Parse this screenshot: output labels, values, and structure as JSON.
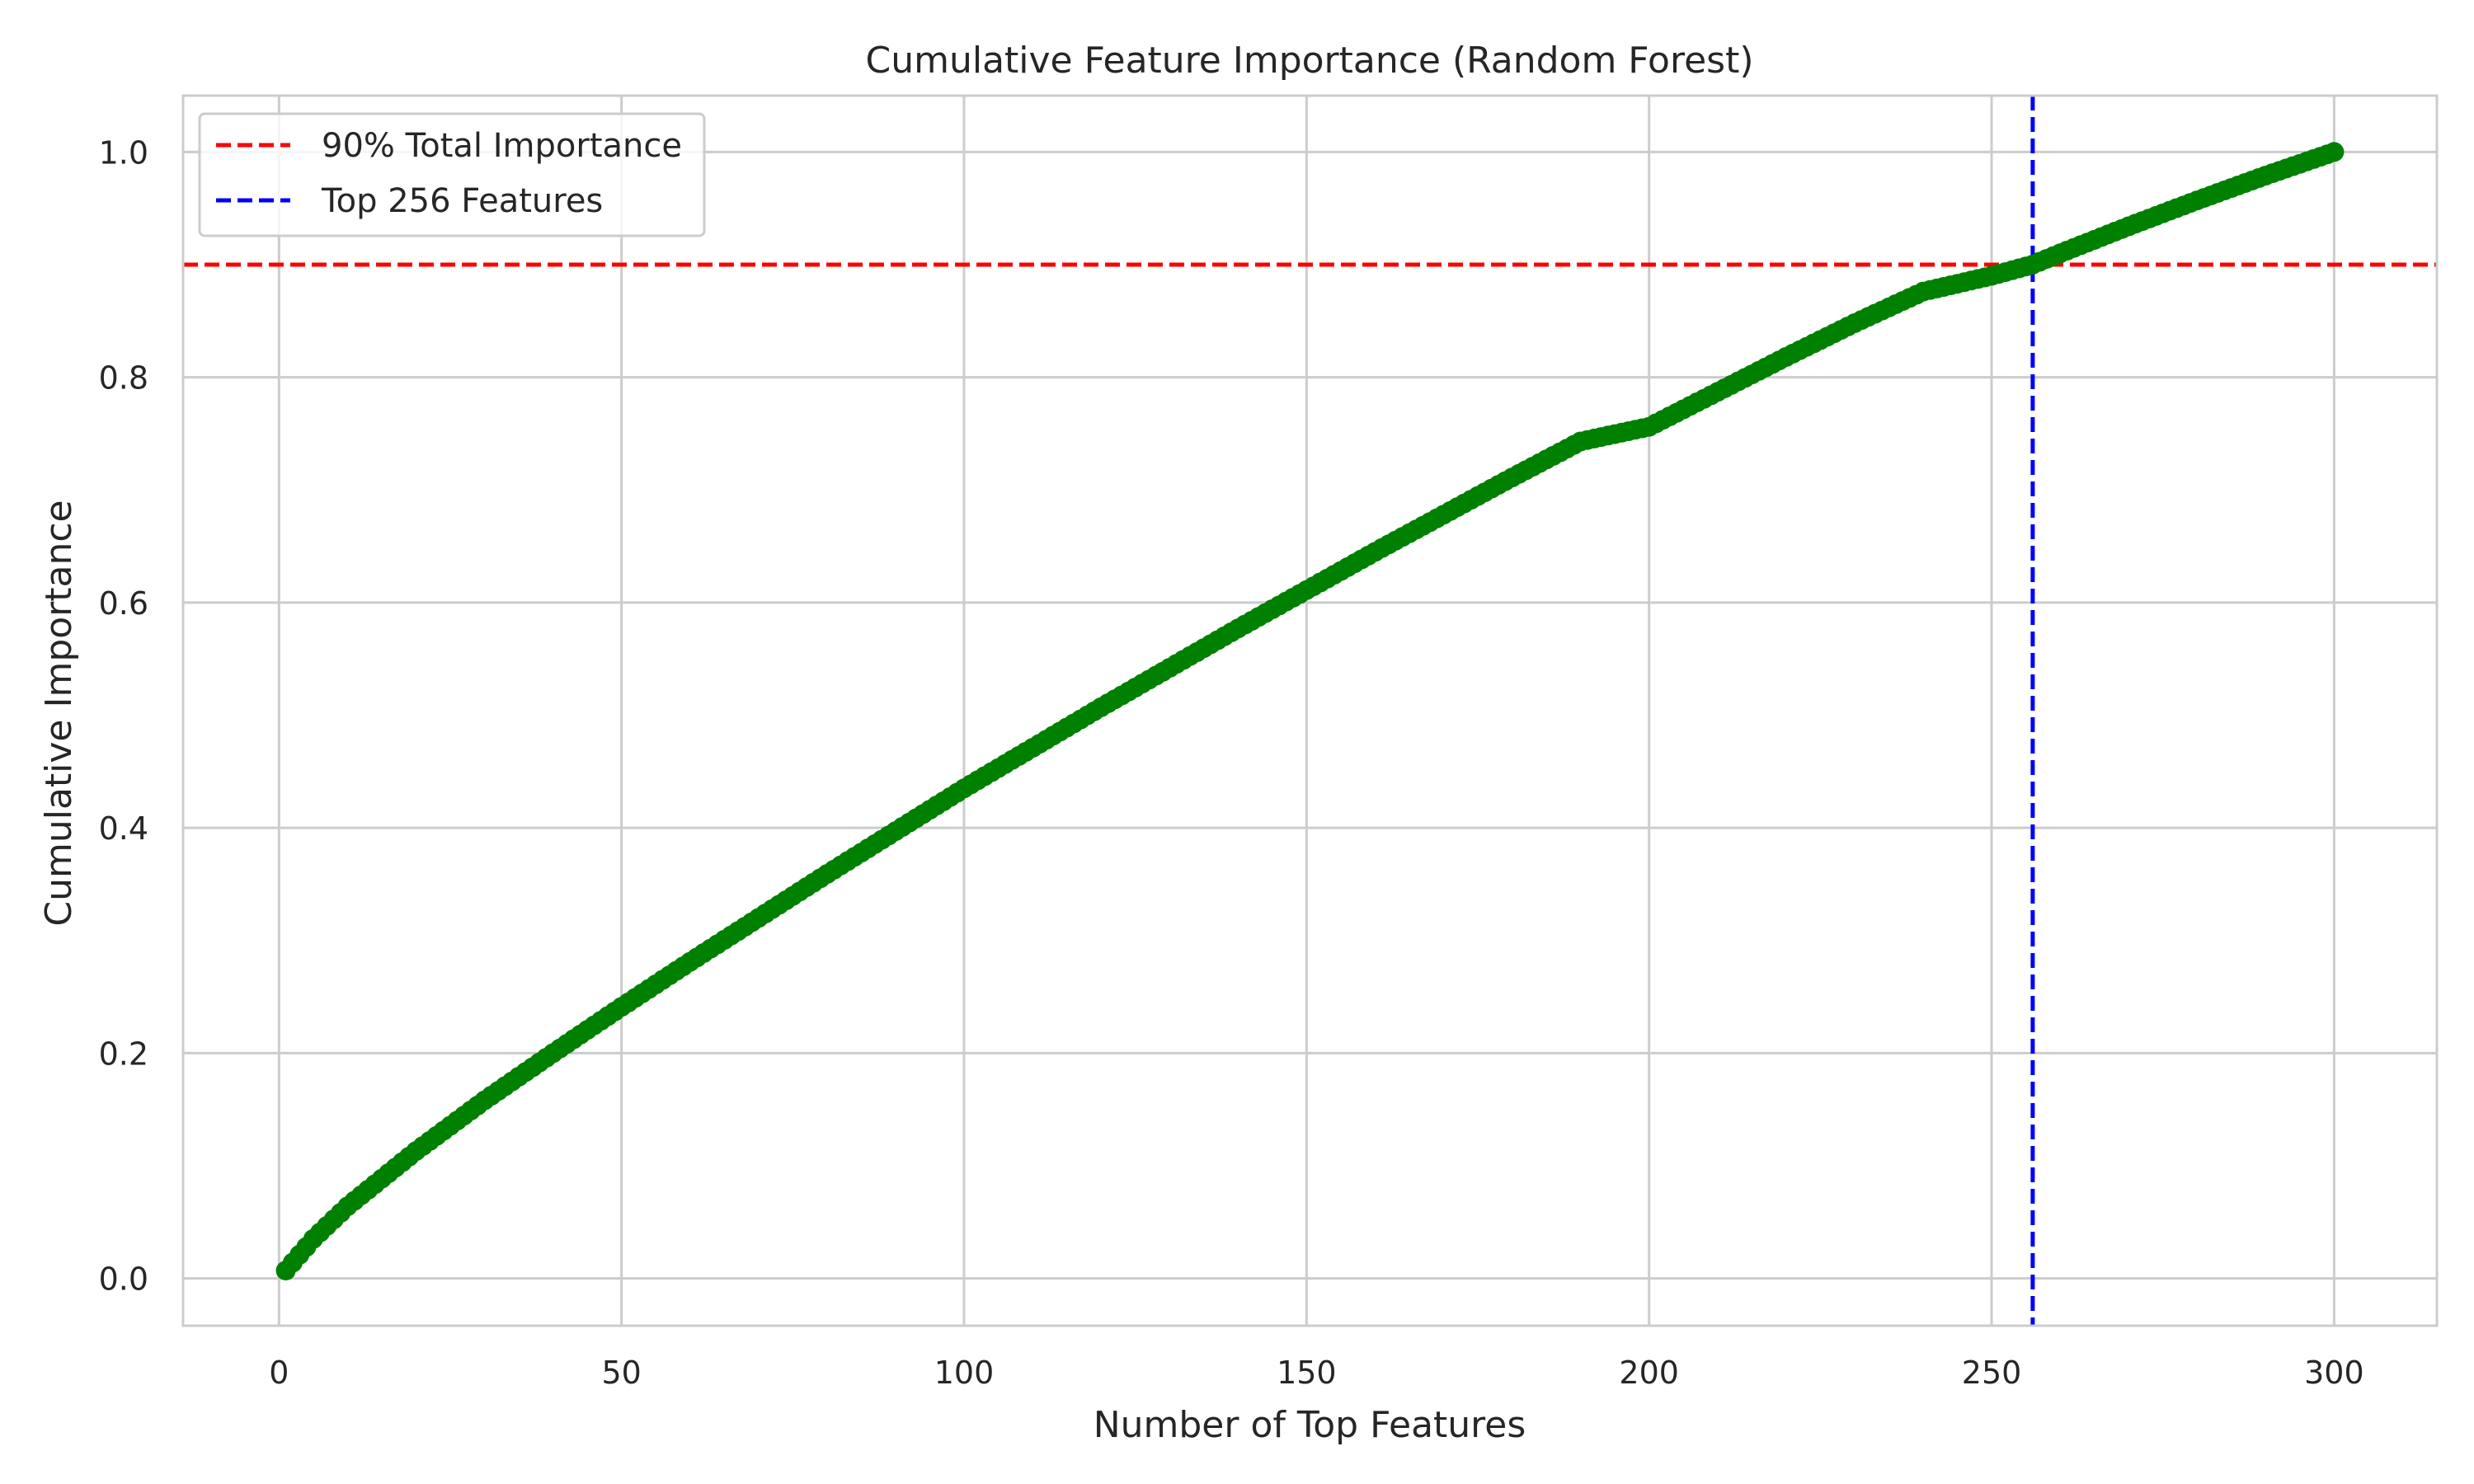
{
  "chart_data": {
    "type": "line",
    "title": "Cumulative Feature Importance (Random Forest)",
    "xlabel": "Number of Top Features",
    "ylabel": "Cumulative Importance",
    "xlim": [
      -14,
      315
    ],
    "ylim": [
      -0.042,
      1.05
    ],
    "xticks": [
      0,
      50,
      100,
      150,
      200,
      250,
      300
    ],
    "xtick_labels": [
      "0",
      "50",
      "100",
      "150",
      "200",
      "250",
      "300"
    ],
    "yticks": [
      0.0,
      0.2,
      0.4,
      0.6,
      0.8,
      1.0
    ],
    "ytick_labels": [
      "0.0",
      "0.2",
      "0.4",
      "0.6",
      "0.8",
      "1.0"
    ],
    "grid": true,
    "legend_placement": "top-left",
    "series": [
      {
        "color": "#008000",
        "marker": "o",
        "points": [
          [
            1,
            0.007
          ],
          [
            5,
            0.035
          ],
          [
            10,
            0.064
          ],
          [
            20,
            0.113
          ],
          [
            30,
            0.158
          ],
          [
            40,
            0.2
          ],
          [
            50,
            0.241
          ],
          [
            60,
            0.281
          ],
          [
            70,
            0.32
          ],
          [
            80,
            0.359
          ],
          [
            90,
            0.397
          ],
          [
            100,
            0.435
          ],
          [
            110,
            0.471
          ],
          [
            120,
            0.507
          ],
          [
            130,
            0.542
          ],
          [
            140,
            0.577
          ],
          [
            150,
            0.611
          ],
          [
            160,
            0.645
          ],
          [
            170,
            0.678
          ],
          [
            180,
            0.711
          ],
          [
            190,
            0.743
          ],
          [
            200,
            0.756
          ],
          [
            210,
            0.787
          ],
          [
            220,
            0.818
          ],
          [
            230,
            0.848
          ],
          [
            240,
            0.876
          ],
          [
            250,
            0.89
          ],
          [
            256,
            0.9
          ],
          [
            260,
            0.91
          ],
          [
            270,
            0.934
          ],
          [
            280,
            0.957
          ],
          [
            290,
            0.979
          ],
          [
            300,
            1.0
          ]
        ]
      }
    ],
    "reference_lines": [
      {
        "orientation": "horizontal",
        "value": 0.9,
        "color": "#ff0000",
        "style": "dashed",
        "label": "90% Total Importance"
      },
      {
        "orientation": "vertical",
        "value": 256,
        "color": "#0000ff",
        "style": "dashed",
        "label": "Top 256 Features"
      }
    ],
    "colors": {
      "grid": "#cccccc",
      "frame": "#cccccc",
      "text": "#262626",
      "background": "#ffffff"
    }
  }
}
